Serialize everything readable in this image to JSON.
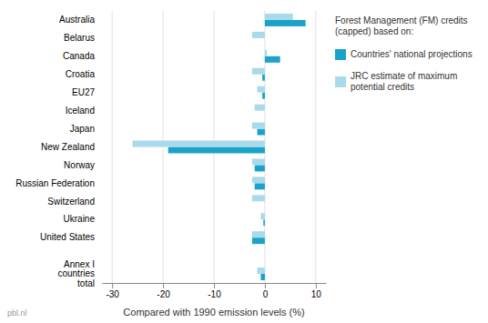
{
  "chart_data": {
    "type": "bar",
    "orientation": "horizontal",
    "categories": [
      "Annex I\ncountries\ntotal",
      null,
      "United States",
      "Ukraine",
      "Switzerland",
      "Russian Federation",
      "Norway",
      "New Zealand",
      "Japan",
      "Iceland",
      "EU27",
      "Croatia",
      "Canada",
      "Belarus",
      "Australia"
    ],
    "series": [
      {
        "name": "Countries' national projections",
        "color": "#1aa3c8",
        "values": [
          -0.8,
          0.0,
          -2.5,
          -0.3,
          0.0,
          -2.0,
          -2.0,
          -19.0,
          -1.5,
          0.0,
          -0.5,
          -0.5,
          3.0,
          0.0,
          8.0
        ]
      },
      {
        "name": "JRC estimate of maximum\npotential credits",
        "color": "#a8daea",
        "values": [
          -1.5,
          0.0,
          -2.5,
          -0.8,
          -2.5,
          -2.5,
          -2.5,
          -26.0,
          -2.5,
          -2.0,
          -1.5,
          -2.5,
          0.4,
          -2.5,
          5.5
        ]
      }
    ],
    "xlabel": "Compared with 1990 emission levels (%)",
    "xlim": [
      -32,
      12
    ],
    "xticks": [
      -30,
      -20,
      -10,
      0,
      10
    ],
    "grid": true,
    "legend": "right",
    "legend_title": "Forest Management (FM) credits\n(capped) based on:",
    "annotations": [
      "pbl.nl"
    ]
  }
}
